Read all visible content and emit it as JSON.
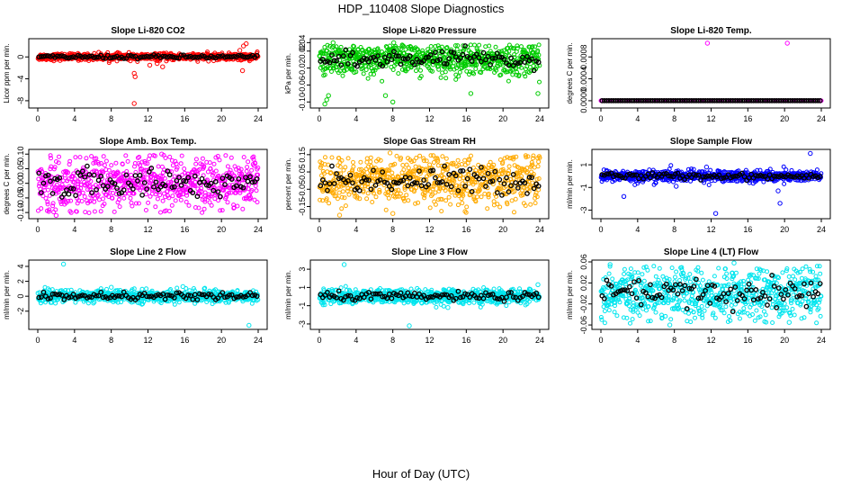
{
  "figure": {
    "title": "HDP_110408  Slope Diagnostics",
    "xlabel": "Hour of Day (UTC)"
  },
  "chart_data": [
    {
      "type": "scatter",
      "title": "Slope Li-820 CO2",
      "ylabel": "Licor ppm per min.",
      "color": "#ff0000",
      "xlim": [
        0,
        24
      ],
      "ylim": [
        -9,
        3
      ],
      "xticks": [
        0,
        4,
        8,
        12,
        16,
        20,
        24
      ],
      "yticks": [
        -8,
        -4,
        0
      ],
      "ytick_labels": [
        "-8",
        "-4",
        "0"
      ],
      "center": 0,
      "spread": 0.3,
      "outliers": [
        [
          10.5,
          -3.0
        ],
        [
          10.6,
          -3.6
        ],
        [
          10.5,
          -8.5
        ],
        [
          12.2,
          -1.5
        ],
        [
          13.0,
          -1.2
        ],
        [
          22.0,
          1.2
        ],
        [
          22.4,
          2.0
        ],
        [
          22.7,
          2.4
        ],
        [
          22.3,
          -2.5
        ],
        [
          13.6,
          -1.8
        ]
      ]
    },
    {
      "type": "scatter",
      "title": "Slope Li-820 Pressure",
      "ylabel": "kPa per min.",
      "color": "#00cc00",
      "xlim": [
        0,
        24
      ],
      "ylim": [
        -0.11,
        0.045
      ],
      "xticks": [
        0,
        4,
        8,
        12,
        16,
        20,
        24
      ],
      "yticks": [
        -0.1,
        -0.06,
        -0.02,
        0.02,
        0.04
      ],
      "ytick_labels": [
        "-0.10",
        "-0.06",
        "-0.02",
        "0.02",
        "0.04"
      ],
      "center": 0.0,
      "spread": 0.018,
      "outliers": [
        [
          0.6,
          -0.105
        ],
        [
          0.8,
          -0.095
        ],
        [
          1.5,
          0.04
        ],
        [
          3.8,
          -0.03
        ],
        [
          8.0,
          -0.1
        ],
        [
          8.1,
          0.04
        ],
        [
          16.5,
          -0.08
        ],
        [
          23.8,
          -0.08
        ],
        [
          7.2,
          -0.085
        ],
        [
          1.0,
          -0.085
        ]
      ]
    },
    {
      "type": "scatter",
      "title": "Slope Li-820 Temp.",
      "ylabel": "degrees C per min.",
      "color": "#ff00ff",
      "xlim": [
        0,
        24
      ],
      "ylim": [
        -0.0001,
        0.0011
      ],
      "xticks": [
        0,
        4,
        8,
        12,
        16,
        20,
        24
      ],
      "yticks": [
        0.0,
        0.0004,
        0.0008
      ],
      "ytick_labels": [
        "0.0000",
        "0.0004",
        "0.0008"
      ],
      "center": 0.0,
      "spread": 0.0,
      "outliers": [
        [
          11.6,
          0.00105
        ],
        [
          20.3,
          0.00105
        ]
      ]
    },
    {
      "type": "scatter",
      "title": "Slope Amb. Box Temp.",
      "ylabel": "degrees C per min.",
      "color": "#ff00ff",
      "xlim": [
        0,
        24
      ],
      "ylim": [
        -0.115,
        0.11
      ],
      "xticks": [
        0,
        4,
        8,
        12,
        16,
        20,
        24
      ],
      "yticks": [
        -0.1,
        -0.05,
        0.0,
        0.05,
        0.1
      ],
      "ytick_labels": [
        "-0.10",
        "-0.05",
        "0.00",
        "0.05",
        "0.10"
      ],
      "center": 0.0,
      "spread": 0.045,
      "outliers": [
        [
          2.0,
          -0.11
        ],
        [
          13.5,
          0.1
        ]
      ]
    },
    {
      "type": "scatter",
      "title": "Slope Gas Stream RH",
      "ylabel": "percent per min.",
      "color": "#ffaa00",
      "xlim": [
        0,
        24
      ],
      "ylim": [
        -0.21,
        0.17
      ],
      "xticks": [
        0,
        4,
        8,
        12,
        16,
        20,
        24
      ],
      "yticks": [
        -0.15,
        -0.05,
        0.05,
        0.15
      ],
      "ytick_labels": [
        "-0.15",
        "-0.05",
        "0.05",
        "0.15"
      ],
      "center": 0.0,
      "spread": 0.07,
      "outliers": [
        [
          2.2,
          -0.2
        ],
        [
          7.7,
          0.16
        ],
        [
          8.0,
          -0.19
        ]
      ]
    },
    {
      "type": "scatter",
      "title": "Slope Sample Flow",
      "ylabel": "ml/min per min.",
      "color": "#0000ff",
      "xlim": [
        0,
        24
      ],
      "ylim": [
        -3.6,
        2.2
      ],
      "xticks": [
        0,
        4,
        8,
        12,
        16,
        20,
        24
      ],
      "yticks": [
        -3,
        -1,
        1
      ],
      "ytick_labels": [
        "-3",
        "-1",
        "1"
      ],
      "center": 0.0,
      "spread": 0.25,
      "outliers": [
        [
          12.5,
          -3.3
        ],
        [
          19.5,
          -2.4
        ],
        [
          22.8,
          2.0
        ],
        [
          2.5,
          -1.8
        ],
        [
          8.2,
          -0.9
        ],
        [
          19.3,
          -1.3
        ],
        [
          11.5,
          0.8
        ]
      ]
    },
    {
      "type": "scatter",
      "title": "Slope Line 2 Flow",
      "ylabel": "ml/min per min.",
      "color": "#00e5ee",
      "xlim": [
        0,
        24
      ],
      "ylim": [
        -4.2,
        4.6
      ],
      "xticks": [
        0,
        4,
        8,
        12,
        16,
        20,
        24
      ],
      "yticks": [
        -2,
        0,
        2,
        4
      ],
      "ytick_labels": [
        "-2",
        "0",
        "2",
        "4"
      ],
      "center": 0.0,
      "spread": 0.4,
      "outliers": [
        [
          2.8,
          4.3
        ],
        [
          23.0,
          -3.9
        ],
        [
          8.0,
          1.2
        ],
        [
          15.8,
          1.3
        ]
      ]
    },
    {
      "type": "scatter",
      "title": "Slope Line 3 Flow",
      "ylabel": "ml/min per min.",
      "color": "#00e5ee",
      "xlim": [
        0,
        24
      ],
      "ylim": [
        -3.4,
        3.8
      ],
      "xticks": [
        0,
        4,
        8,
        12,
        16,
        20,
        24
      ],
      "yticks": [
        -3,
        -1,
        1,
        3
      ],
      "ytick_labels": [
        "-3",
        "-1",
        "1",
        "3"
      ],
      "center": 0.0,
      "spread": 0.4,
      "outliers": [
        [
          2.7,
          3.5
        ],
        [
          9.8,
          -3.2
        ],
        [
          14.0,
          -1.2
        ],
        [
          23.8,
          1.3
        ]
      ]
    },
    {
      "type": "scatter",
      "title": "Slope Line 4 (LT) Flow",
      "ylabel": "ml/min per min.",
      "color": "#00e5ee",
      "xlim": [
        0,
        24
      ],
      "ylim": [
        -0.065,
        0.06
      ],
      "xticks": [
        0,
        4,
        8,
        12,
        16,
        20,
        24
      ],
      "yticks": [
        -0.06,
        -0.02,
        0.02,
        0.06
      ],
      "ytick_labels": [
        "-0.06",
        "-0.02",
        "0.02",
        "0.06"
      ],
      "center": 0.0,
      "spread": 0.025,
      "outliers": [
        [
          1.0,
          0.055
        ],
        [
          7.5,
          -0.06
        ],
        [
          14.5,
          0.058
        ],
        [
          20.5,
          -0.055
        ]
      ]
    }
  ]
}
